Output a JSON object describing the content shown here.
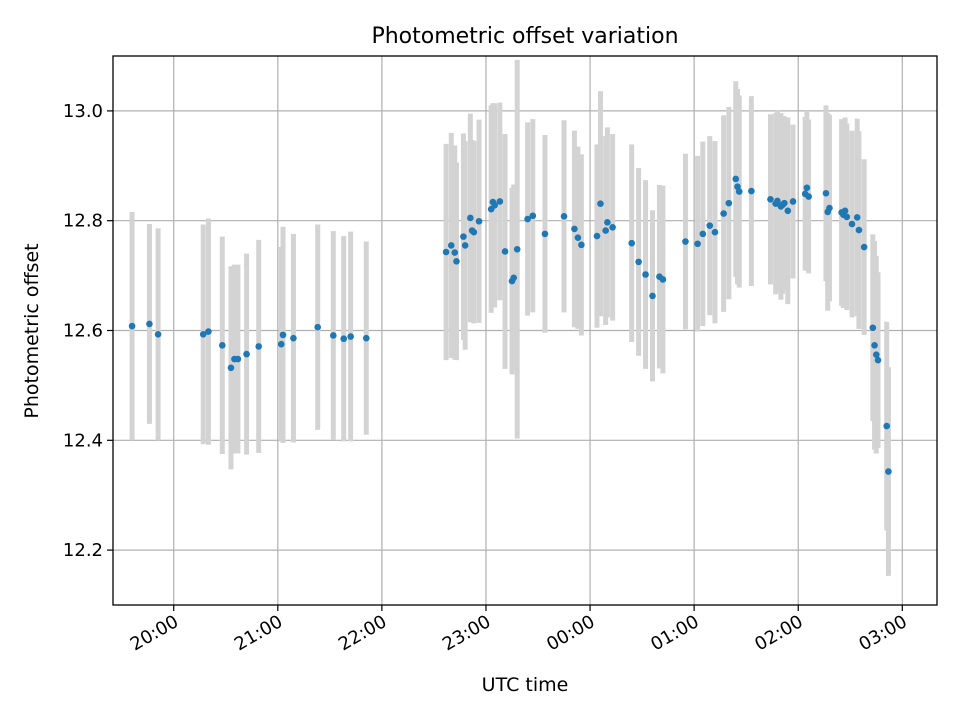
{
  "chart_data": {
    "type": "scatter",
    "title": "Photometric offset variation",
    "xlabel": "UTC time",
    "ylabel": "Photometric offset",
    "xlim": [
      "19:25",
      "03:20"
    ],
    "ylim": [
      12.1,
      13.1
    ],
    "x_ticks": [
      "20:00",
      "21:00",
      "22:00",
      "23:00",
      "00:00",
      "01:00",
      "02:00",
      "03:00"
    ],
    "y_ticks": [
      "12.2",
      "12.4",
      "12.6",
      "12.8",
      "13.0"
    ],
    "grid": true,
    "colors": {
      "point": "#1f77b4",
      "errorbar": "#d3d3d3",
      "grid": "#b0b0b0"
    },
    "points": [
      {
        "x": "19:36",
        "y": 12.608,
        "err": 0.208
      },
      {
        "x": "19:46",
        "y": 12.612,
        "err": 0.182
      },
      {
        "x": "19:51",
        "y": 12.593,
        "err": 0.193
      },
      {
        "x": "20:17",
        "y": 12.593,
        "err": 0.2
      },
      {
        "x": "20:20",
        "y": 12.598,
        "err": 0.206
      },
      {
        "x": "20:28",
        "y": 12.573,
        "err": 0.198
      },
      {
        "x": "20:33",
        "y": 12.532,
        "err": 0.185
      },
      {
        "x": "20:35",
        "y": 12.548,
        "err": 0.172
      },
      {
        "x": "20:37",
        "y": 12.548,
        "err": 0.172
      },
      {
        "x": "20:42",
        "y": 12.557,
        "err": 0.183
      },
      {
        "x": "20:49",
        "y": 12.571,
        "err": 0.194
      },
      {
        "x": "21:02",
        "y": 12.575,
        "err": 0.177
      },
      {
        "x": "21:03",
        "y": 12.592,
        "err": 0.197
      },
      {
        "x": "21:09",
        "y": 12.586,
        "err": 0.19
      },
      {
        "x": "21:23",
        "y": 12.606,
        "err": 0.187
      },
      {
        "x": "21:32",
        "y": 12.591,
        "err": 0.19
      },
      {
        "x": "21:38",
        "y": 12.585,
        "err": 0.187
      },
      {
        "x": "21:42",
        "y": 12.589,
        "err": 0.191
      },
      {
        "x": "21:51",
        "y": 12.586,
        "err": 0.176
      },
      {
        "x": "22:37",
        "y": 12.743,
        "err": 0.197
      },
      {
        "x": "22:40",
        "y": 12.755,
        "err": 0.205
      },
      {
        "x": "22:42",
        "y": 12.742,
        "err": 0.195
      },
      {
        "x": "22:43",
        "y": 12.726,
        "err": 0.18
      },
      {
        "x": "22:47",
        "y": 12.771,
        "err": 0.188
      },
      {
        "x": "22:48",
        "y": 12.755,
        "err": 0.19
      },
      {
        "x": "22:51",
        "y": 12.805,
        "err": 0.19
      },
      {
        "x": "22:52",
        "y": 12.782,
        "err": 0.165
      },
      {
        "x": "22:53",
        "y": 12.779,
        "err": 0.166
      },
      {
        "x": "22:56",
        "y": 12.799,
        "err": 0.185
      },
      {
        "x": "23:03",
        "y": 12.821,
        "err": 0.189
      },
      {
        "x": "23:04",
        "y": 12.834,
        "err": 0.18
      },
      {
        "x": "23:05",
        "y": 12.828,
        "err": 0.186
      },
      {
        "x": "23:08",
        "y": 12.835,
        "err": 0.18
      },
      {
        "x": "23:11",
        "y": 12.744,
        "err": 0.214
      },
      {
        "x": "23:15",
        "y": 12.69,
        "err": 0.17
      },
      {
        "x": "23:16",
        "y": 12.696,
        "err": 0.17
      },
      {
        "x": "23:18",
        "y": 12.748,
        "err": 0.345
      },
      {
        "x": "23:24",
        "y": 12.803,
        "err": 0.176
      },
      {
        "x": "23:27",
        "y": 12.809,
        "err": 0.176
      },
      {
        "x": "23:34",
        "y": 12.776,
        "err": 0.18
      },
      {
        "x": "23:45",
        "y": 12.808,
        "err": 0.175
      },
      {
        "x": "23:51",
        "y": 12.785,
        "err": 0.179
      },
      {
        "x": "23:53",
        "y": 12.769,
        "err": 0.166
      },
      {
        "x": "23:55",
        "y": 12.756,
        "err": 0.165
      },
      {
        "x": "00:04",
        "y": 12.772,
        "err": 0.167
      },
      {
        "x": "00:06",
        "y": 12.831,
        "err": 0.205
      },
      {
        "x": "00:09",
        "y": 12.782,
        "err": 0.172
      },
      {
        "x": "00:10",
        "y": 12.797,
        "err": 0.173
      },
      {
        "x": "00:13",
        "y": 12.788,
        "err": 0.17
      },
      {
        "x": "00:24",
        "y": 12.759,
        "err": 0.18
      },
      {
        "x": "00:28",
        "y": 12.725,
        "err": 0.171
      },
      {
        "x": "00:32",
        "y": 12.702,
        "err": 0.172
      },
      {
        "x": "00:36",
        "y": 12.663,
        "err": 0.156
      },
      {
        "x": "00:40",
        "y": 12.698,
        "err": 0.167
      },
      {
        "x": "00:42",
        "y": 12.693,
        "err": 0.171
      },
      {
        "x": "00:55",
        "y": 12.762,
        "err": 0.16
      },
      {
        "x": "01:02",
        "y": 12.758,
        "err": 0.16
      },
      {
        "x": "01:05",
        "y": 12.776,
        "err": 0.168
      },
      {
        "x": "01:09",
        "y": 12.791,
        "err": 0.163
      },
      {
        "x": "01:12",
        "y": 12.779,
        "err": 0.166
      },
      {
        "x": "01:17",
        "y": 12.813,
        "err": 0.179
      },
      {
        "x": "01:20",
        "y": 12.832,
        "err": 0.175
      },
      {
        "x": "01:24",
        "y": 12.876,
        "err": 0.178
      },
      {
        "x": "01:25",
        "y": 12.862,
        "err": 0.178
      },
      {
        "x": "01:26",
        "y": 12.853,
        "err": 0.175
      },
      {
        "x": "01:33",
        "y": 12.854,
        "err": 0.173
      },
      {
        "x": "01:44",
        "y": 12.839,
        "err": 0.155
      },
      {
        "x": "01:47",
        "y": 12.831,
        "err": 0.165
      },
      {
        "x": "01:48",
        "y": 12.836,
        "err": 0.165
      },
      {
        "x": "01:50",
        "y": 12.826,
        "err": 0.17
      },
      {
        "x": "01:51",
        "y": 12.829,
        "err": 0.162
      },
      {
        "x": "01:52",
        "y": 12.832,
        "err": 0.158
      },
      {
        "x": "01:54",
        "y": 12.818,
        "err": 0.17
      },
      {
        "x": "01:57",
        "y": 12.835,
        "err": 0.14
      },
      {
        "x": "02:04",
        "y": 12.849,
        "err": 0.14
      },
      {
        "x": "02:05",
        "y": 12.86,
        "err": 0.14
      },
      {
        "x": "02:06",
        "y": 12.844,
        "err": 0.14
      },
      {
        "x": "02:16",
        "y": 12.85,
        "err": 0.16
      },
      {
        "x": "02:17",
        "y": 12.816,
        "err": 0.18
      },
      {
        "x": "02:18",
        "y": 12.823,
        "err": 0.17
      },
      {
        "x": "02:25",
        "y": 12.815,
        "err": 0.17
      },
      {
        "x": "02:26",
        "y": 12.811,
        "err": 0.17
      },
      {
        "x": "02:27",
        "y": 12.818,
        "err": 0.17
      },
      {
        "x": "02:28",
        "y": 12.807,
        "err": 0.17
      },
      {
        "x": "02:31",
        "y": 12.794,
        "err": 0.17
      },
      {
        "x": "02:34",
        "y": 12.806,
        "err": 0.18
      },
      {
        "x": "02:35",
        "y": 12.783,
        "err": 0.18
      },
      {
        "x": "02:38",
        "y": 12.752,
        "err": 0.16
      },
      {
        "x": "02:43",
        "y": 12.605,
        "err": 0.17
      },
      {
        "x": "02:44",
        "y": 12.573,
        "err": 0.19
      },
      {
        "x": "02:45",
        "y": 12.556,
        "err": 0.18
      },
      {
        "x": "02:46",
        "y": 12.546,
        "err": 0.16
      },
      {
        "x": "02:51",
        "y": 12.426,
        "err": 0.19
      },
      {
        "x": "02:52",
        "y": 12.343,
        "err": 0.19
      }
    ]
  }
}
